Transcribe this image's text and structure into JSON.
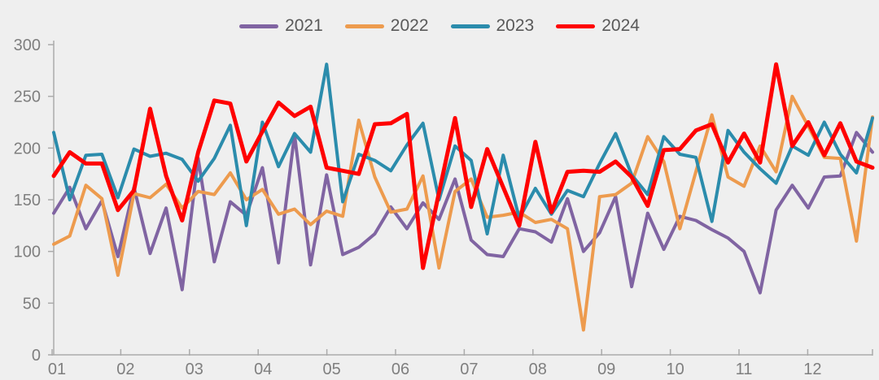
{
  "style": {
    "background_color": "#EFEFEF",
    "axis_color": "#ABABAB",
    "tick_label_color": "#7F7F7F",
    "legend_text_color": "#595959"
  },
  "chart_data": {
    "type": "line",
    "title": "",
    "xlabel": "",
    "ylabel": "",
    "ylim": [
      0,
      300
    ],
    "yticks": [
      0,
      50,
      100,
      150,
      200,
      250,
      300
    ],
    "ytick_labels": [
      "0",
      "50",
      "100",
      "150",
      "200",
      "250",
      "300"
    ],
    "x_tick_labels": [
      "01",
      "02",
      "03",
      "04",
      "05",
      "06",
      "07",
      "08",
      "09",
      "10",
      "11",
      "12"
    ],
    "grid": false,
    "legend_position": "top-center",
    "points_per_series": 52,
    "x": [
      1,
      2,
      3,
      4,
      5,
      6,
      7,
      8,
      9,
      10,
      11,
      12,
      13,
      14,
      15,
      16,
      17,
      18,
      19,
      20,
      21,
      22,
      23,
      24,
      25,
      26,
      27,
      28,
      29,
      30,
      31,
      32,
      33,
      34,
      35,
      36,
      37,
      38,
      39,
      40,
      41,
      42,
      43,
      44,
      45,
      46,
      47,
      48,
      49,
      50,
      51,
      52
    ],
    "series": [
      {
        "name": "2021",
        "color": "#8064A2",
        "values": [
          137,
          162,
          122,
          149,
          95,
          162,
          98,
          142,
          63,
          190,
          90,
          148,
          135,
          181,
          89,
          213,
          87,
          174,
          97,
          104,
          117,
          143,
          122,
          147,
          131,
          170,
          111,
          97,
          95,
          122,
          119,
          109,
          151,
          100,
          118,
          153,
          66,
          137,
          102,
          134,
          130,
          121,
          113,
          100,
          60,
          140,
          164,
          142,
          172,
          173,
          215,
          196
        ]
      },
      {
        "name": "2022",
        "color": "#ED9B4E",
        "values": [
          107,
          115,
          164,
          151,
          77,
          156,
          152,
          165,
          142,
          158,
          155,
          176,
          150,
          160,
          136,
          141,
          126,
          139,
          134,
          227,
          172,
          138,
          141,
          173,
          84,
          158,
          170,
          133,
          135,
          138,
          128,
          131,
          122,
          24,
          153,
          155,
          166,
          211,
          187,
          122,
          177,
          232,
          172,
          163,
          202,
          177,
          250,
          221,
          191,
          190,
          110,
          230
        ]
      },
      {
        "name": "2023",
        "color": "#2B8CAC",
        "values": [
          215,
          150,
          193,
          194,
          152,
          199,
          192,
          195,
          189,
          168,
          190,
          222,
          125,
          225,
          182,
          214,
          196,
          281,
          148,
          194,
          188,
          178,
          203,
          224,
          150,
          202,
          188,
          117,
          193,
          132,
          161,
          136,
          159,
          153,
          185,
          214,
          174,
          155,
          211,
          194,
          191,
          129,
          217,
          196,
          180,
          166,
          202,
          193,
          225,
          194,
          176,
          229
        ]
      },
      {
        "name": "2024",
        "color": "#FF0000",
        "values": [
          173,
          196,
          185,
          185,
          140,
          159,
          238,
          173,
          130,
          196,
          246,
          243,
          187,
          216,
          244,
          231,
          240,
          181,
          178,
          175,
          223,
          224,
          233,
          84,
          157,
          229,
          143,
          199,
          162,
          125,
          206,
          138,
          177,
          178,
          177,
          187,
          172,
          144,
          198,
          199,
          217,
          223,
          186,
          214,
          186,
          281,
          202,
          225,
          193,
          224,
          187,
          181
        ]
      }
    ]
  }
}
